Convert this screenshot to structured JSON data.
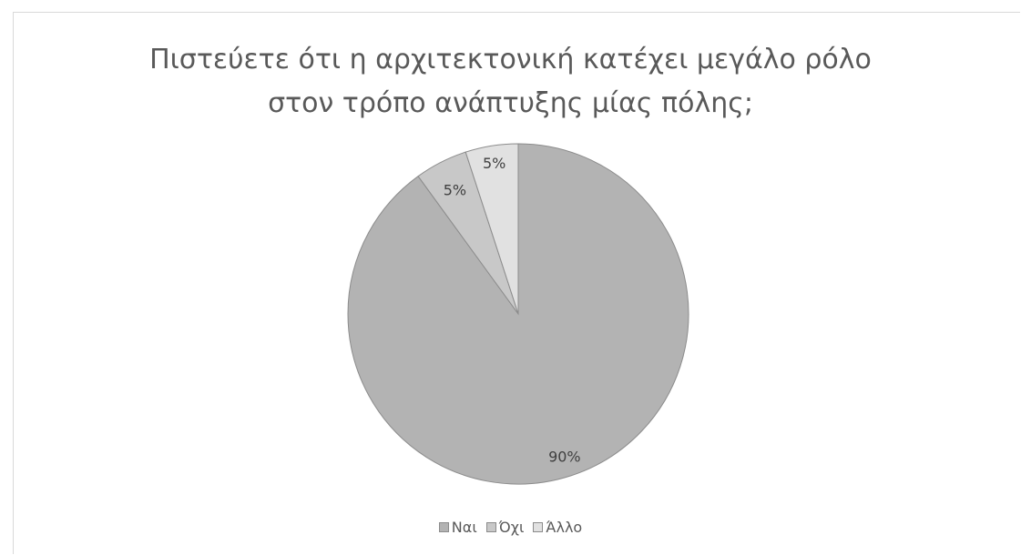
{
  "chart_data": {
    "type": "pie",
    "title": "Πιστεύετε ότι η αρχιτεκτονική κατέχει μεγάλο ρόλο στον τρόπο ανάπτυξης μίας πόλης;",
    "title_lines": [
      "Πιστεύετε ότι η αρχιτεκτονική κατέχει μεγάλο ρόλο",
      "στον τρόπο ανάπτυξης μίας πόλης;"
    ],
    "categories": [
      "Ναι",
      "Όχι",
      "Άλλο"
    ],
    "values": [
      90,
      5,
      5
    ],
    "labels": [
      "90%",
      "5%",
      "5%"
    ],
    "colors": [
      "#b3b3b3",
      "#c8c8c8",
      "#e1e1e1"
    ],
    "legend": "bottom"
  }
}
